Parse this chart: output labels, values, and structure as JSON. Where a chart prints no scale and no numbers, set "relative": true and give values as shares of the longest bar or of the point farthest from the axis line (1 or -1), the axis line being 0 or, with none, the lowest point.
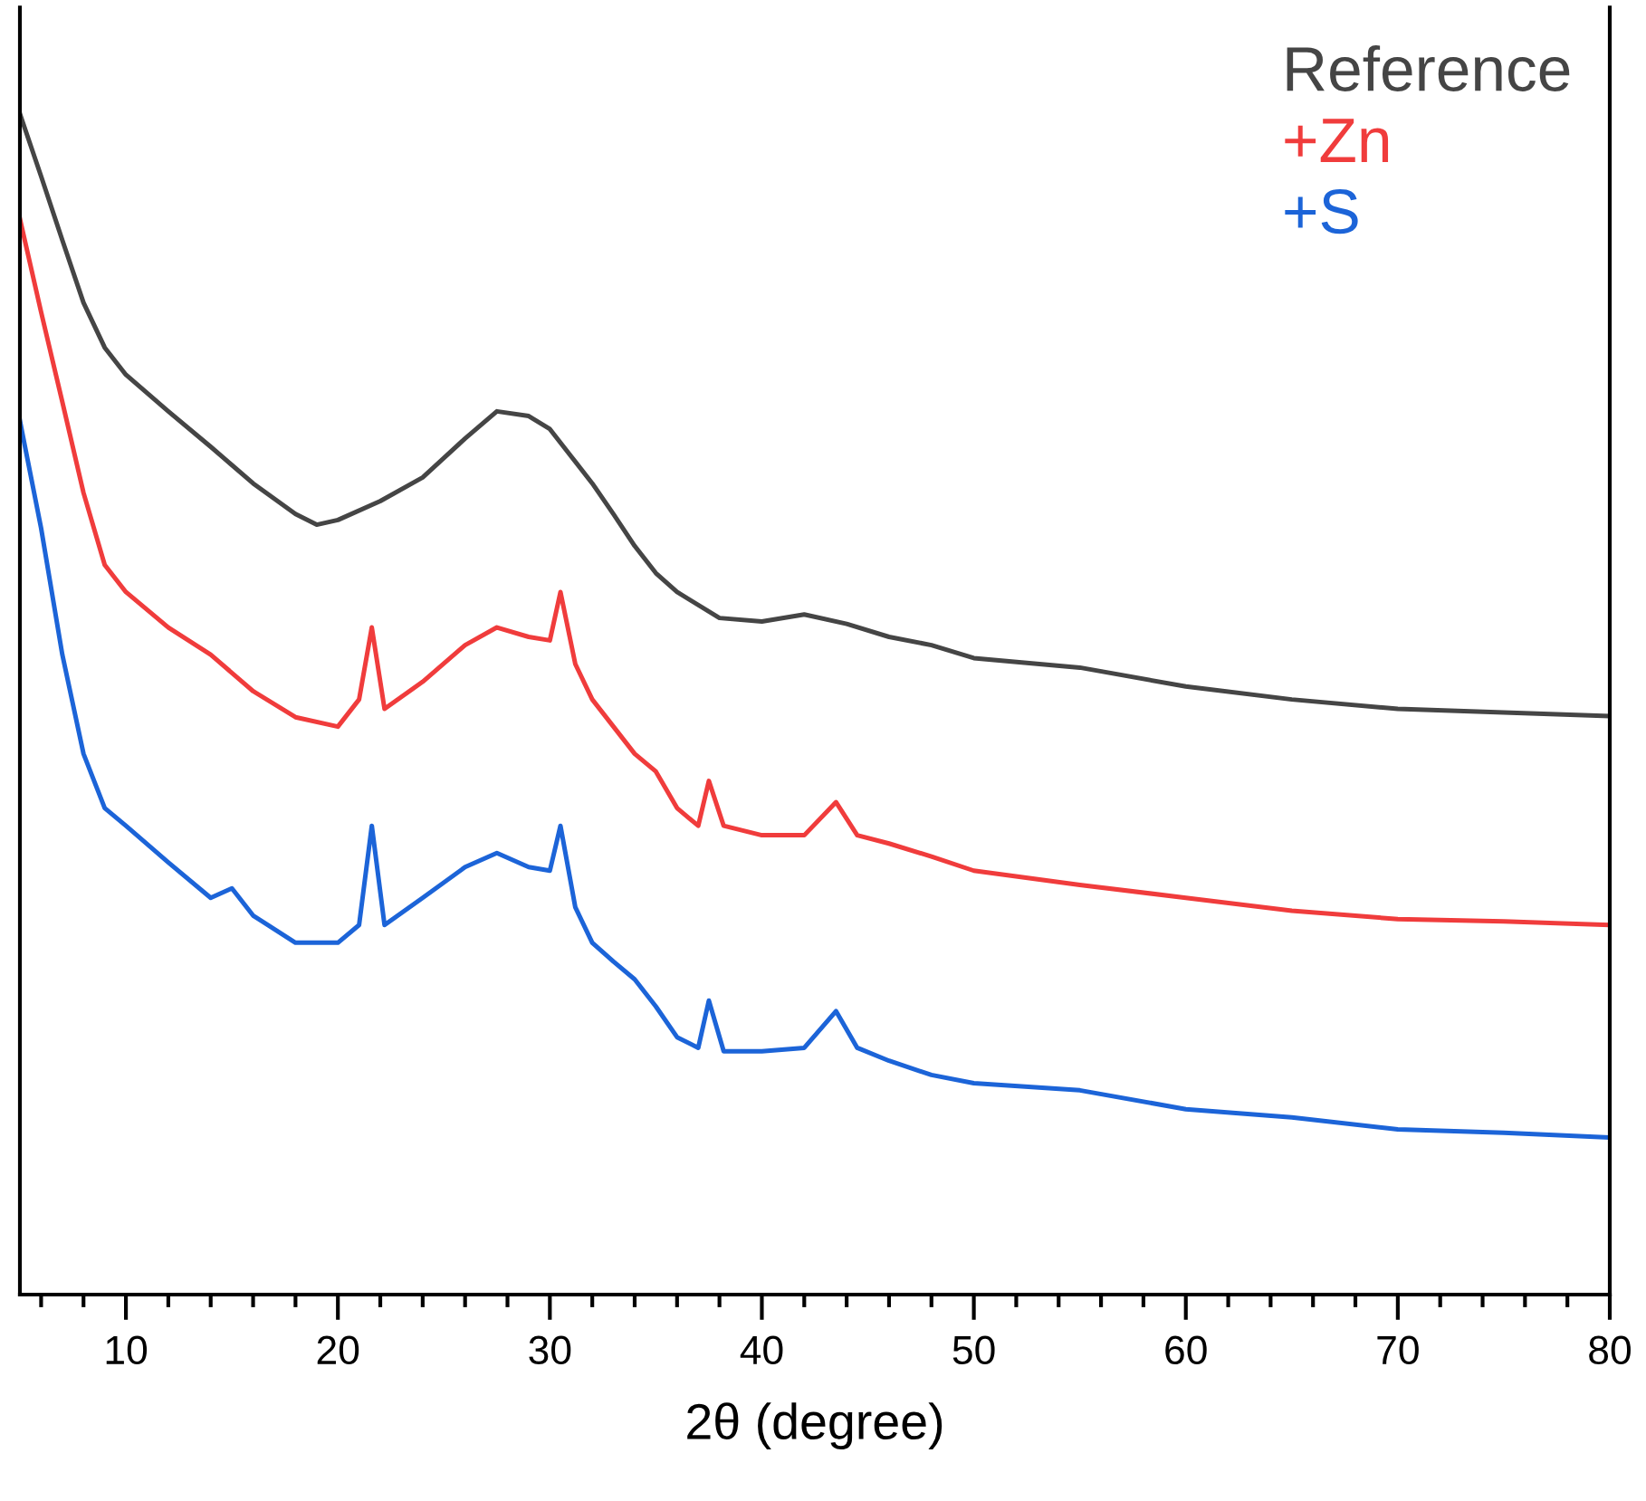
{
  "chart_data": {
    "type": "line",
    "xlabel": "2θ (degree)",
    "relative": true,
    "tick_labels": "x",
    "legend": "top right",
    "grid": false,
    "xlim": [
      5,
      80
    ],
    "xticks": [
      10,
      20,
      30,
      40,
      50,
      60,
      70,
      80
    ],
    "series": [
      {
        "name": "Reference",
        "color": "#454545",
        "x": [
          5,
          6,
          7,
          8,
          9,
          10,
          12,
          14,
          16,
          18,
          19,
          20,
          22,
          24,
          26,
          27.5,
          29,
          30,
          31,
          32,
          33,
          34,
          35,
          36,
          38,
          40,
          42,
          44,
          46,
          48,
          50,
          55,
          60,
          65,
          70,
          75,
          80
        ],
        "values": [
          1.0,
          0.947,
          0.893,
          0.84,
          0.802,
          0.779,
          0.748,
          0.718,
          0.687,
          0.661,
          0.652,
          0.656,
          0.672,
          0.692,
          0.725,
          0.748,
          0.744,
          0.733,
          0.71,
          0.687,
          0.661,
          0.634,
          0.611,
          0.595,
          0.573,
          0.57,
          0.576,
          0.568,
          0.557,
          0.55,
          0.539,
          0.531,
          0.515,
          0.504,
          0.496,
          0.493,
          0.49
        ]
      },
      {
        "name": "+Zn",
        "color": "#f03c3c",
        "x": [
          5,
          6,
          7,
          8,
          9,
          10,
          12,
          14,
          16,
          18,
          20,
          21,
          21.6,
          22.2,
          24,
          26,
          27.5,
          29,
          30,
          30.5,
          31.2,
          32,
          33,
          34,
          35,
          36,
          37,
          37.5,
          38.2,
          40,
          42,
          43.5,
          44.5,
          46,
          48,
          50,
          55,
          60,
          65,
          70,
          75,
          80
        ],
        "values": [
          0.911,
          0.832,
          0.756,
          0.679,
          0.618,
          0.595,
          0.565,
          0.542,
          0.511,
          0.489,
          0.481,
          0.504,
          0.565,
          0.496,
          0.519,
          0.55,
          0.565,
          0.557,
          0.554,
          0.595,
          0.534,
          0.504,
          0.481,
          0.458,
          0.443,
          0.412,
          0.397,
          0.435,
          0.397,
          0.389,
          0.389,
          0.417,
          0.389,
          0.382,
          0.371,
          0.359,
          0.347,
          0.336,
          0.325,
          0.318,
          0.316,
          0.313
        ]
      },
      {
        "name": "+S",
        "color": "#1c64d8",
        "x": [
          5,
          6,
          7,
          8,
          9,
          10,
          12,
          14,
          15,
          16,
          18,
          20,
          21,
          21.6,
          22.2,
          24,
          26,
          27.5,
          29,
          30,
          30.5,
          31.2,
          32,
          33,
          34,
          35,
          36,
          37,
          37.5,
          38.2,
          40,
          42,
          43.5,
          44.5,
          46,
          48,
          50,
          55,
          60,
          65,
          70,
          75,
          80
        ],
        "values": [
          0.74,
          0.649,
          0.542,
          0.458,
          0.412,
          0.397,
          0.366,
          0.336,
          0.344,
          0.321,
          0.298,
          0.298,
          0.313,
          0.397,
          0.313,
          0.336,
          0.362,
          0.374,
          0.362,
          0.359,
          0.397,
          0.328,
          0.298,
          0.282,
          0.267,
          0.244,
          0.218,
          0.209,
          0.249,
          0.206,
          0.206,
          0.209,
          0.24,
          0.209,
          0.198,
          0.186,
          0.179,
          0.173,
          0.157,
          0.15,
          0.14,
          0.137,
          0.133
        ]
      }
    ]
  }
}
